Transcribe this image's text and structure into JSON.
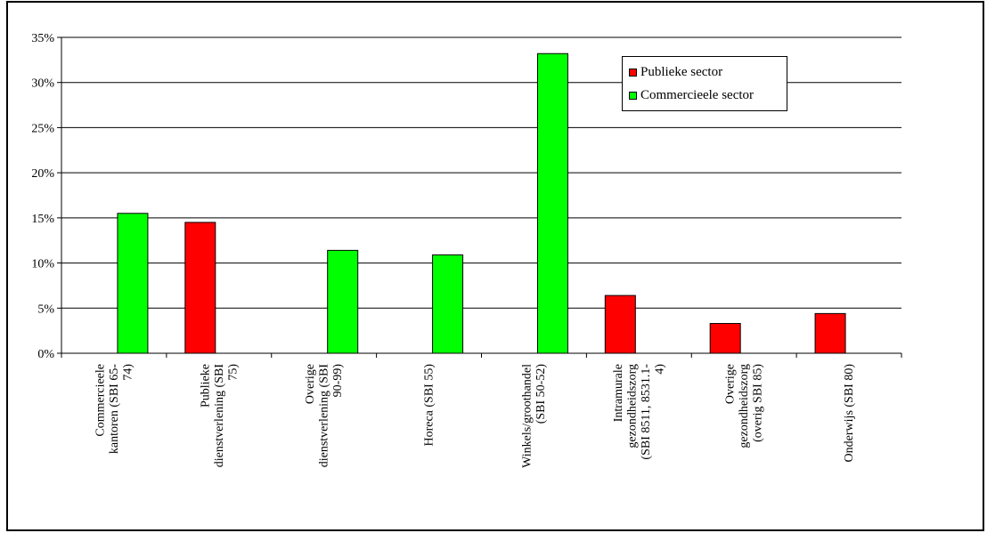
{
  "chart_data": {
    "type": "bar",
    "title": "",
    "xlabel": "",
    "ylabel": "",
    "ylim": [
      0,
      35
    ],
    "yticks": [
      0,
      5,
      10,
      15,
      20,
      25,
      30,
      35
    ],
    "ytick_labels": [
      "0%",
      "5%",
      "10%",
      "15%",
      "20%",
      "25%",
      "30%",
      "35%"
    ],
    "grid": true,
    "legend_position": "top-right",
    "categories": [
      "Commercieele kantoren (SBI 65-74)",
      "Publieke dienstverlening (SBI 75)",
      "Overige dienstverlening (SBI 90-99)",
      "Horeca (SBI 55)",
      "Winkels/groothandel (SBI 50-52)",
      "Intramurale gezondheidszorg (SBI 8511, 8531.1-4)",
      "Overige gezondheidszorg (overig SBI 85)",
      "Onderwijs (SBI 80)"
    ],
    "category_label_lines": [
      [
        "Commercieele",
        "kantoren (SBI 65-",
        "74)"
      ],
      [
        "Publieke",
        "dienstverlening (SBI",
        "75)"
      ],
      [
        "Overige",
        "dienstverlening (SBI",
        "90-99)"
      ],
      [
        "Horeca (SBI 55)"
      ],
      [
        "Winkels/groothandel",
        "(SBI 50-52)"
      ],
      [
        "Intramurale",
        "gezondheidszorg",
        "(SBI 8511, 8531.1-",
        "4)"
      ],
      [
        "Overige",
        "gezondheidszorg",
        "(overig SBI 85)"
      ],
      [
        "Onderwijs (SBI 80)"
      ]
    ],
    "series": [
      {
        "name": "Publieke sector",
        "color": "#ff0000",
        "values": [
          null,
          14.5,
          null,
          null,
          null,
          6.4,
          3.3,
          4.4
        ]
      },
      {
        "name": "Commercieele sector",
        "color": "#00ff00",
        "values": [
          15.5,
          null,
          11.4,
          10.9,
          33.2,
          null,
          null,
          null
        ]
      }
    ]
  }
}
